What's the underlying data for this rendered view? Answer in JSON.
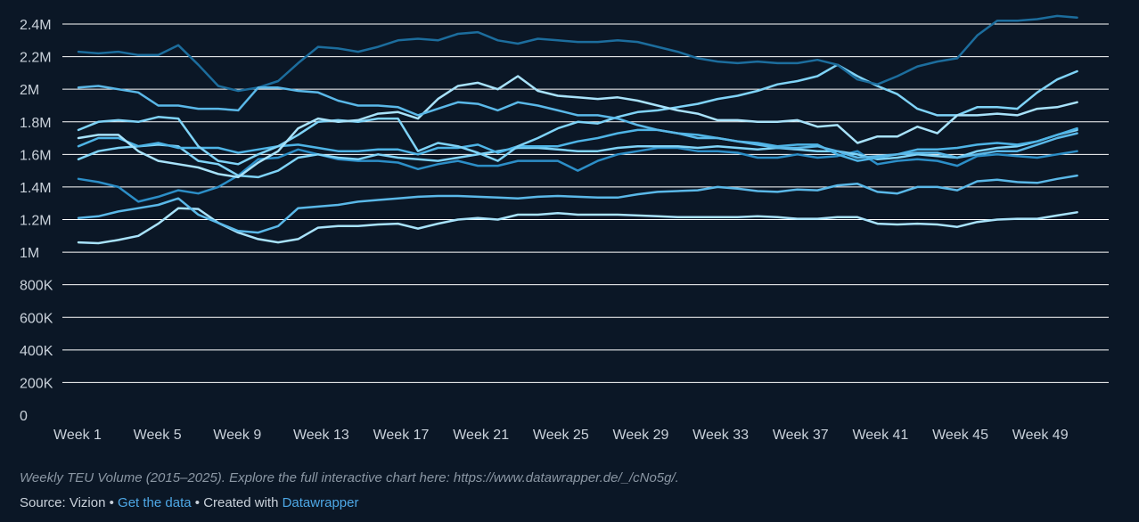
{
  "notes": "Weekly TEU Volume (2015–2025). Explore the full interactive chart here: https://www.datawrapper.de/_/cNo5g/.",
  "footer": {
    "source_label": "Source: Vizion",
    "separator": " • ",
    "get_data_link": "Get the data",
    "created_with_label": "Created with",
    "datawrapper_link": "Datawrapper"
  },
  "colors": {
    "background": "#0b1726",
    "gridline": "#ffffff",
    "tick_text": "#c9d1da",
    "link": "#4ea8e6",
    "series_palette": [
      "#7fd3f7",
      "#4eb4e6",
      "#2c8ec7",
      "#1c6d9d",
      "#a8e2fa",
      "#5ab8e8"
    ]
  },
  "chart_data": {
    "type": "line",
    "x_tick_labels": [
      "Week 1",
      "Week 5",
      "Week 9",
      "Week 13",
      "Week 17",
      "Week 21",
      "Week 25",
      "Week 29",
      "Week 33",
      "Week 37",
      "Week 41",
      "Week 45",
      "Week 49"
    ],
    "x_tick_weeks": [
      1,
      5,
      9,
      13,
      17,
      21,
      25,
      29,
      33,
      37,
      41,
      45,
      49
    ],
    "xlim": [
      1,
      52
    ],
    "y_tick_labels": [
      "0",
      "200K",
      "400K",
      "600K",
      "800K",
      "1M",
      "1.2M",
      "1.4M",
      "1.6M",
      "1.8M",
      "2M",
      "2.2M",
      "2.4M"
    ],
    "y_tick_values": [
      0,
      200000,
      400000,
      600000,
      800000,
      1000000,
      1200000,
      1400000,
      1600000,
      1800000,
      2000000,
      2200000,
      2400000
    ],
    "ylim": [
      0,
      2400000
    ],
    "grid": true,
    "legend": "none",
    "x": [
      1,
      2,
      3,
      4,
      5,
      6,
      7,
      8,
      9,
      10,
      11,
      12,
      13,
      14,
      15,
      16,
      17,
      18,
      19,
      20,
      21,
      22,
      23,
      24,
      25,
      26,
      27,
      28,
      29,
      30,
      31,
      32,
      33,
      34,
      35,
      36,
      37,
      38,
      39,
      40,
      41,
      42,
      43,
      44,
      45,
      46,
      47,
      48,
      49,
      50,
      51
    ],
    "series": [
      {
        "color": "#a8e2fa",
        "values": [
          1060000,
          1055000,
          1075000,
          1100000,
          1175000,
          1270000,
          1265000,
          1180000,
          1120000,
          1080000,
          1060000,
          1080000,
          1150000,
          1160000,
          1160000,
          1170000,
          1175000,
          1145000,
          1175000,
          1200000,
          1210000,
          1200000,
          1230000,
          1230000,
          1240000,
          1230000,
          1230000,
          1230000,
          1225000,
          1220000,
          1215000,
          1215000,
          1215000,
          1215000,
          1220000,
          1215000,
          1205000,
          1205000,
          1215000,
          1215000,
          1175000,
          1170000,
          1175000,
          1170000,
          1155000,
          1185000,
          1200000,
          1205000,
          1205000,
          1225000,
          1245000
        ]
      },
      {
        "color": "#5ab8e8",
        "values": [
          1210000,
          1220000,
          1250000,
          1270000,
          1290000,
          1330000,
          1230000,
          1180000,
          1130000,
          1120000,
          1160000,
          1270000,
          1280000,
          1290000,
          1310000,
          1320000,
          1330000,
          1340000,
          1345000,
          1345000,
          1340000,
          1335000,
          1330000,
          1340000,
          1345000,
          1340000,
          1335000,
          1335000,
          1355000,
          1370000,
          1375000,
          1380000,
          1400000,
          1390000,
          1375000,
          1370000,
          1385000,
          1380000,
          1410000,
          1420000,
          1370000,
          1360000,
          1400000,
          1400000,
          1380000,
          1435000,
          1445000,
          1430000,
          1425000,
          1450000,
          1470000
        ]
      },
      {
        "color": "#2c8ec7",
        "values": [
          1450000,
          1430000,
          1400000,
          1310000,
          1340000,
          1380000,
          1360000,
          1400000,
          1470000,
          1570000,
          1580000,
          1630000,
          1600000,
          1570000,
          1560000,
          1560000,
          1550000,
          1510000,
          1540000,
          1560000,
          1530000,
          1530000,
          1560000,
          1560000,
          1560000,
          1500000,
          1560000,
          1600000,
          1620000,
          1640000,
          1640000,
          1620000,
          1620000,
          1610000,
          1580000,
          1580000,
          1600000,
          1580000,
          1590000,
          1620000,
          1540000,
          1560000,
          1570000,
          1560000,
          1530000,
          1590000,
          1600000,
          1590000,
          1580000,
          1600000,
          1620000
        ]
      },
      {
        "color": "#7fd3f7",
        "values": [
          1570000,
          1620000,
          1640000,
          1650000,
          1660000,
          1650000,
          1560000,
          1540000,
          1470000,
          1460000,
          1500000,
          1580000,
          1600000,
          1580000,
          1570000,
          1600000,
          1580000,
          1570000,
          1560000,
          1580000,
          1600000,
          1620000,
          1640000,
          1640000,
          1630000,
          1620000,
          1620000,
          1640000,
          1650000,
          1650000,
          1650000,
          1640000,
          1650000,
          1640000,
          1630000,
          1640000,
          1630000,
          1620000,
          1620000,
          1600000,
          1570000,
          1580000,
          1600000,
          1590000,
          1580000,
          1620000,
          1640000,
          1650000,
          1680000,
          1720000,
          1750000
        ]
      },
      {
        "color": "#4eb4e6",
        "values": [
          1650000,
          1700000,
          1700000,
          1650000,
          1670000,
          1640000,
          1640000,
          1640000,
          1610000,
          1630000,
          1650000,
          1660000,
          1640000,
          1620000,
          1620000,
          1630000,
          1630000,
          1600000,
          1640000,
          1640000,
          1660000,
          1610000,
          1650000,
          1650000,
          1650000,
          1680000,
          1700000,
          1730000,
          1750000,
          1750000,
          1730000,
          1720000,
          1700000,
          1680000,
          1670000,
          1650000,
          1660000,
          1660000,
          1600000,
          1560000,
          1580000,
          1600000,
          1630000,
          1630000,
          1640000,
          1660000,
          1670000,
          1660000,
          1680000,
          1720000,
          1760000
        ]
      },
      {
        "color": "#7fd3f7",
        "values": [
          1750000,
          1800000,
          1810000,
          1800000,
          1830000,
          1820000,
          1650000,
          1560000,
          1540000,
          1600000,
          1650000,
          1720000,
          1800000,
          1810000,
          1800000,
          1820000,
          1820000,
          1620000,
          1670000,
          1650000,
          1610000,
          1560000,
          1650000,
          1700000,
          1760000,
          1800000,
          1790000,
          1830000,
          1860000,
          1870000,
          1890000,
          1910000,
          1940000,
          1960000,
          1990000,
          2030000,
          2050000,
          2080000,
          2150000,
          2080000,
          2020000,
          1970000,
          1880000,
          1840000,
          1840000,
          1890000,
          1890000,
          1880000,
          1980000,
          2060000,
          2110000
        ]
      },
      {
        "color": "#a8e2fa",
        "values": [
          1700000,
          1720000,
          1720000,
          1620000,
          1560000,
          1540000,
          1520000,
          1480000,
          1460000,
          1550000,
          1620000,
          1760000,
          1820000,
          1800000,
          1810000,
          1850000,
          1860000,
          1820000,
          1940000,
          2020000,
          2040000,
          2000000,
          2080000,
          1990000,
          1960000,
          1950000,
          1940000,
          1950000,
          1930000,
          1900000,
          1870000,
          1850000,
          1810000,
          1810000,
          1800000,
          1800000,
          1810000,
          1770000,
          1780000,
          1670000,
          1710000,
          1710000,
          1770000,
          1730000,
          1840000,
          1840000,
          1850000,
          1840000,
          1880000,
          1890000,
          1920000
        ]
      },
      {
        "color": "#1c6d9d",
        "values": [
          2230000,
          2220000,
          2230000,
          2210000,
          2210000,
          2270000,
          2150000,
          2020000,
          1990000,
          2010000,
          2050000,
          2160000,
          2260000,
          2250000,
          2230000,
          2260000,
          2300000,
          2310000,
          2300000,
          2340000,
          2350000,
          2300000,
          2280000,
          2310000,
          2300000,
          2290000,
          2290000,
          2300000,
          2290000,
          2260000,
          2230000,
          2190000,
          2170000,
          2160000,
          2170000,
          2160000,
          2160000,
          2180000,
          2150000,
          2060000,
          2030000,
          2080000,
          2140000,
          2170000,
          2190000,
          2330000,
          2420000,
          2420000,
          2430000,
          2450000,
          2440000
        ]
      },
      {
        "color": "#5ab8e8",
        "values": [
          2010000,
          2020000,
          2000000,
          1980000,
          1900000,
          1900000,
          1880000,
          1880000,
          1870000,
          2010000,
          2010000,
          1990000,
          1980000,
          1930000,
          1900000,
          1900000,
          1890000,
          1840000,
          1880000,
          1920000,
          1910000,
          1870000,
          1920000,
          1900000,
          1870000,
          1840000,
          1840000,
          1820000,
          1780000,
          1750000,
          1730000,
          1700000,
          1700000,
          1680000,
          1660000,
          1640000,
          1640000,
          1650000,
          1620000,
          1580000,
          1590000,
          1600000,
          1610000,
          1610000,
          1580000,
          1600000,
          1620000,
          1620000,
          1660000,
          1700000,
          1730000
        ]
      }
    ]
  }
}
